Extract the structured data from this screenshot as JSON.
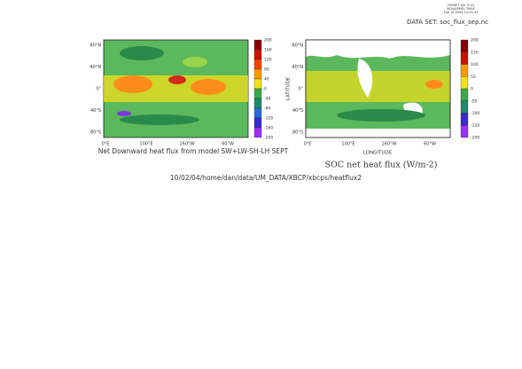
{
  "header": {
    "ferret": [
      "FERRET Ver. 5.22",
      "NOAA/PMEL TMAP",
      "Feb 10 2004 14:24:41"
    ],
    "dataset": "DATA SET: soc_flux_sep.nc"
  },
  "left_map": {
    "lat_labels": [
      "80°N",
      "40°N",
      "0°",
      "40°S",
      "80°S"
    ],
    "lon_labels": [
      "0°E",
      "100°E",
      "160°W",
      "60°W"
    ],
    "colorbar": [
      200,
      160,
      120,
      80,
      40,
      0,
      -40,
      -80,
      -120,
      -160,
      -200
    ],
    "caption": "Net Downward heat flux from model SW+LW-SH-LH SEPT"
  },
  "right_map": {
    "lat_labels": [
      "80°N",
      "40°N",
      "0°",
      "40°S",
      "80°S"
    ],
    "lon_labels": [
      "0°E",
      "100°E",
      "160°W",
      "60°W"
    ],
    "colorbar": [
      200,
      150,
      100,
      50,
      0,
      -50,
      -100,
      -150,
      -200
    ],
    "ylabel": "LATITUDE",
    "xlabel": "LONGITUDE",
    "title": "SOC net heat flux (W/m-2)"
  },
  "footer": "10/02/04/home/dan/data/UM_DATA/XBCP/xbcps/heatflux2"
}
